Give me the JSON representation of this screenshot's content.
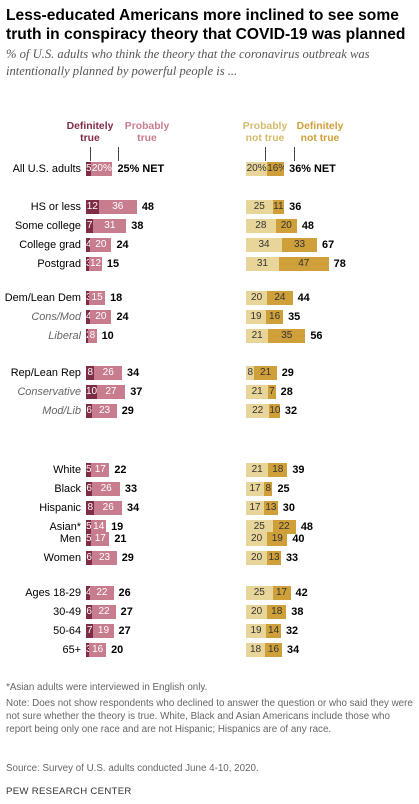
{
  "title": "Less-educated Americans more inclined to see some truth in conspiracy theory that COVID-19 was planned",
  "subtitle": "% of U.S. adults who think the theory that the coronavirus outbreak was intentionally planned by powerful people is ...",
  "colors": {
    "definitely_true": "#7f2d46",
    "probably_true": "#c87d8f",
    "probably_not_true": "#e8d59a",
    "definitely_not_true": "#cfa03a"
  },
  "chart_data": {
    "type": "bar",
    "orientation": "horizontal-stacked",
    "series_headers": {
      "definitely_true": "Definitely true",
      "probably_true": "Probably true",
      "probably_not_true": "Probably not true",
      "definitely_not_true": "Definitely not true"
    },
    "rows": [
      {
        "label": "All U.S. adults",
        "italic": false,
        "group": 0,
        "dt": 5,
        "pt": 20,
        "true_net": 25,
        "pnt": 20,
        "dnt": 16,
        "not_true_net": 36,
        "dt_text": "5%",
        "pt_text": "20%",
        "true_net_text": "25% NET",
        "pnt_text": "20%",
        "dnt_text": "16%",
        "not_true_net_text": "36% NET"
      },
      {
        "label": "HS or less",
        "italic": false,
        "group": 1,
        "dt": 12,
        "pt": 36,
        "true_net": 48,
        "pnt": 25,
        "dnt": 11,
        "not_true_net": 36
      },
      {
        "label": "Some college",
        "italic": false,
        "group": 1,
        "dt": 7,
        "pt": 31,
        "true_net": 38,
        "pnt": 28,
        "dnt": 20,
        "not_true_net": 48
      },
      {
        "label": "College grad",
        "italic": false,
        "group": 1,
        "dt": 4,
        "pt": 20,
        "true_net": 24,
        "pnt": 34,
        "dnt": 33,
        "not_true_net": 67
      },
      {
        "label": "Postgrad",
        "italic": false,
        "group": 1,
        "dt": 3,
        "pt": 12,
        "true_net": 15,
        "pnt": 31,
        "dnt": 47,
        "not_true_net": 78
      },
      {
        "label": "Dem/Lean Dem",
        "italic": false,
        "group": 2,
        "dt": 3,
        "pt": 15,
        "true_net": 18,
        "pnt": 20,
        "dnt": 24,
        "not_true_net": 44
      },
      {
        "label": "Cons/Mod",
        "italic": true,
        "group": 2,
        "dt": 4,
        "pt": 20,
        "true_net": 24,
        "pnt": 19,
        "dnt": 16,
        "not_true_net": 35
      },
      {
        "label": "Liberal",
        "italic": true,
        "group": 2,
        "dt": 2,
        "pt": 8,
        "true_net": 10,
        "pnt": 21,
        "dnt": 35,
        "not_true_net": 56
      },
      {
        "label": "Rep/Lean Rep",
        "italic": false,
        "group": 3,
        "dt": 8,
        "pt": 26,
        "true_net": 34,
        "pnt": 8,
        "dnt": 21,
        "not_true_net": 29
      },
      {
        "label": "Conservative",
        "italic": true,
        "group": 3,
        "dt": 10,
        "pt": 27,
        "true_net": 37,
        "pnt": 21,
        "dnt": 7,
        "not_true_net": 28
      },
      {
        "label": "Mod/Lib",
        "italic": true,
        "group": 3,
        "dt": 6,
        "pt": 23,
        "true_net": 29,
        "pnt": 22,
        "dnt": 10,
        "not_true_net": 32
      },
      {
        "label": "White",
        "italic": false,
        "group": 4,
        "dt": 5,
        "pt": 17,
        "true_net": 22,
        "pnt": 21,
        "dnt": 18,
        "not_true_net": 39
      },
      {
        "label": "Black",
        "italic": false,
        "group": 4,
        "dt": 6,
        "pt": 26,
        "true_net": 33,
        "pnt": 17,
        "dnt": 8,
        "not_true_net": 25
      },
      {
        "label": "Hispanic",
        "italic": false,
        "group": 4,
        "dt": 8,
        "pt": 26,
        "true_net": 34,
        "pnt": 17,
        "dnt": 13,
        "not_true_net": 30
      },
      {
        "label": "Asian*",
        "italic": false,
        "group": 4,
        "dt": 5,
        "pt": 14,
        "true_net": 19,
        "pnt": 25,
        "dnt": 22,
        "not_true_net": 48
      },
      {
        "label": "Men",
        "italic": false,
        "group": 5,
        "dt": 5,
        "pt": 17,
        "true_net": 21,
        "pnt": 20,
        "dnt": 19,
        "not_true_net": 40
      },
      {
        "label": "Women",
        "italic": false,
        "group": 5,
        "dt": 6,
        "pt": 23,
        "true_net": 29,
        "pnt": 20,
        "dnt": 13,
        "not_true_net": 33
      },
      {
        "label": "Ages 18-29",
        "italic": false,
        "group": 6,
        "dt": 4,
        "pt": 22,
        "true_net": 26,
        "pnt": 25,
        "dnt": 17,
        "not_true_net": 42
      },
      {
        "label": "30-49",
        "italic": false,
        "group": 6,
        "dt": 6,
        "pt": 22,
        "true_net": 27,
        "pnt": 20,
        "dnt": 18,
        "not_true_net": 38
      },
      {
        "label": "50-64",
        "italic": false,
        "group": 6,
        "dt": 7,
        "pt": 19,
        "true_net": 27,
        "pnt": 19,
        "dnt": 14,
        "not_true_net": 32
      },
      {
        "label": "65+",
        "italic": false,
        "group": 6,
        "dt": 3,
        "pt": 16,
        "true_net": 20,
        "pnt": 18,
        "dnt": 16,
        "not_true_net": 34
      }
    ]
  },
  "footnotes": {
    "asian": "*Asian adults were interviewed in English only.",
    "note": "Note: Does not show respondents who declined to answer the question or who said they were not sure whether the theory is true. White, Black and Asian Americans include those who report being only one race and are not Hispanic; Hispanics are of any race.",
    "source": "Source: Survey of U.S. adults conducted June 4-10, 2020."
  },
  "brand": "PEW RESEARCH CENTER"
}
